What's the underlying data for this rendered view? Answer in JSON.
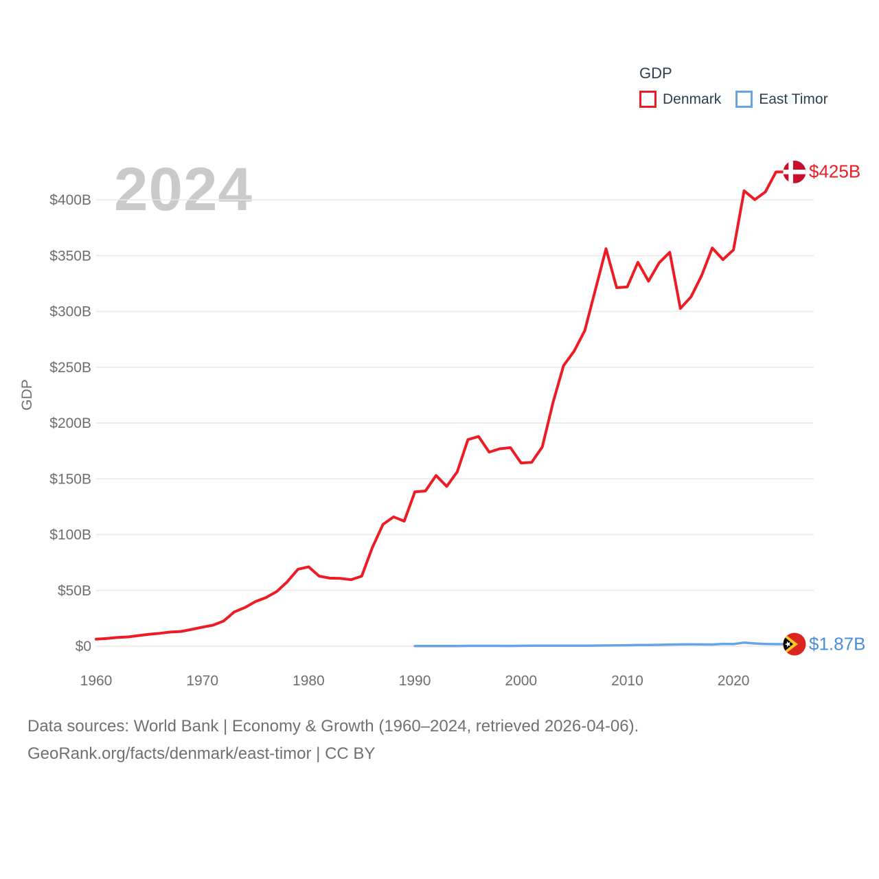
{
  "watermark_year": "2024",
  "legend": {
    "title": "GDP"
  },
  "chart_data": {
    "type": "line",
    "title": "GDP",
    "xlabel": "",
    "ylabel": "GDP",
    "xlim": [
      1960,
      2024
    ],
    "ylim": [
      0,
      425
    ],
    "grid": true,
    "legend_position": "top-right",
    "x_ticks": [
      1960,
      1970,
      1980,
      1990,
      2000,
      2010,
      2020
    ],
    "x_tick_labels": [
      "1960",
      "1970",
      "1980",
      "1990",
      "2000",
      "2010",
      "2020"
    ],
    "y_ticks": [
      0,
      50,
      100,
      150,
      200,
      250,
      300,
      350,
      400
    ],
    "y_tick_labels": [
      "$0",
      "$50B",
      "$100B",
      "$150B",
      "$200B",
      "$250B",
      "$300B",
      "$350B",
      "$400B"
    ],
    "series": [
      {
        "name": "Denmark",
        "color": "#ed1c24",
        "label_color": "#ed1c24",
        "end_label": "$425B",
        "flag": "denmark",
        "start_year": 1960,
        "values": [
          6.25,
          6.93,
          7.81,
          8.33,
          9.51,
          10.68,
          11.56,
          12.69,
          13.24,
          15.05,
          17.07,
          18.84,
          22.51,
          30.73,
          34.67,
          39.98,
          43.65,
          49.0,
          57.81,
          68.98,
          71.13,
          62.77,
          60.96,
          60.75,
          59.62,
          62.74,
          88.45,
          109.16,
          115.86,
          112.09,
          138.25,
          139.06,
          152.97,
          143.23,
          156.39,
          185.09,
          187.93,
          173.88,
          176.92,
          177.9,
          164.16,
          164.79,
          178.64,
          218.1,
          251.37,
          264.47,
          282.88,
          319.42,
          356.1,
          321.24,
          322.0,
          344.0,
          327.15,
          343.58,
          352.99,
          302.67,
          313.12,
          332.12,
          356.84,
          346.44,
          355.22,
          408.1,
          400.17,
          407.09,
          425.0
        ]
      },
      {
        "name": "East Timor",
        "color": "#67a4e4",
        "label_color": "#4a90d9",
        "end_label": "$1.87B",
        "flag": "east-timor",
        "start_year": 1990,
        "values": [
          0.14,
          0.14,
          0.13,
          0.16,
          0.17,
          0.31,
          0.33,
          0.32,
          0.3,
          0.27,
          0.37,
          0.48,
          0.47,
          0.49,
          0.43,
          0.46,
          0.45,
          0.54,
          0.65,
          0.72,
          0.88,
          1.12,
          1.11,
          1.25,
          1.45,
          1.59,
          1.65,
          1.62,
          1.56,
          2.08,
          1.9,
          3.21,
          2.45,
          1.99,
          1.87
        ]
      }
    ]
  },
  "colors": {
    "grid": "#e8e8e8",
    "tick_text": "#6e6e6e",
    "legend_text": "#2c3e50",
    "watermark": "#cacaca",
    "footer_text": "#707070",
    "denmark_flag_red": "#c8102e",
    "east_timor_flag_red": "#dc241f",
    "east_timor_flag_yellow": "#ffc726"
  },
  "footer": {
    "line1": "Data sources: World Bank | Economy & Growth (1960–2024, retrieved 2026-04-06).",
    "line2": "GeoRank.org/facts/denmark/east-timor | CC BY"
  }
}
